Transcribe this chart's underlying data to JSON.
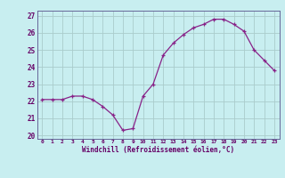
{
  "x": [
    0,
    1,
    2,
    3,
    4,
    5,
    6,
    7,
    8,
    9,
    10,
    11,
    12,
    13,
    14,
    15,
    16,
    17,
    18,
    19,
    20,
    21,
    22,
    23
  ],
  "y": [
    22.1,
    22.1,
    22.1,
    22.3,
    22.3,
    22.1,
    21.7,
    21.2,
    20.3,
    20.4,
    22.3,
    23.0,
    24.7,
    25.4,
    25.9,
    26.3,
    26.5,
    26.8,
    26.8,
    26.5,
    26.1,
    25.0,
    24.4,
    23.8
  ],
  "line_color": "#882288",
  "marker": "+",
  "bg_color": "#c8eef0",
  "grid_color": "#aacccc",
  "ylabel_ticks": [
    20,
    21,
    22,
    23,
    24,
    25,
    26,
    27
  ],
  "xtick_labels": [
    "0",
    "1",
    "2",
    "3",
    "4",
    "5",
    "6",
    "7",
    "8",
    "9",
    "10",
    "11",
    "12",
    "13",
    "14",
    "15",
    "16",
    "17",
    "18",
    "19",
    "20",
    "21",
    "22",
    "23"
  ],
  "xlabel": "Windchill (Refroidissement éolien,°C)",
  "ylim": [
    19.8,
    27.3
  ],
  "xlim": [
    -0.5,
    23.5
  ],
  "font_color": "#660066"
}
